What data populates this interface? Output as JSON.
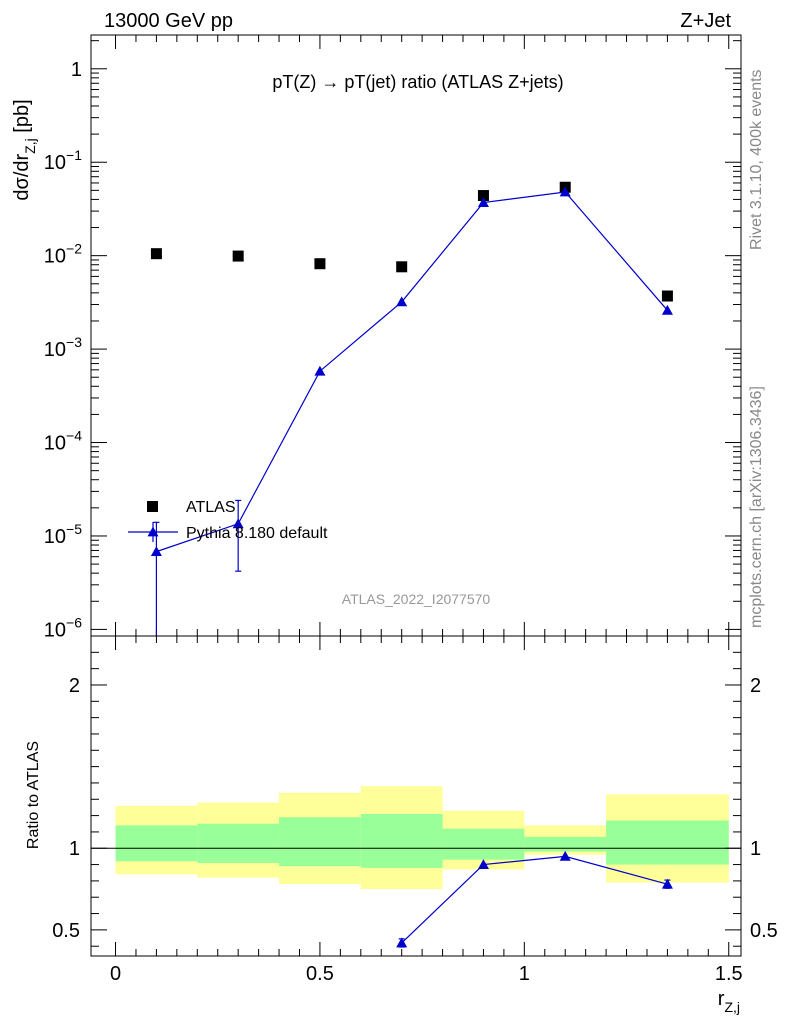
{
  "header": {
    "left": "13000 GeV pp",
    "right": "Z+Jet"
  },
  "side_labels": {
    "rivet": "Rivet 3.1.10,  400k events",
    "mcplots": "mcplots.cern.ch [arXiv:1306.3436]"
  },
  "chart_data": [
    {
      "type": "scatter",
      "title": "pT(Z) → pT(jet) ratio (ATLAS Z+jets)",
      "ylabel_main": "dσ/dr",
      "ylabel_sub": "Z,j",
      "ylabel_unit": " [pb]",
      "watermark": "ATLAS_2022_I2077570",
      "yscale": "log",
      "ylim": [
        8.5e-07,
        2.3
      ],
      "xlim": [
        -0.06,
        1.53
      ],
      "yticks": [
        {
          "mant": "1",
          "exp": ""
        },
        {
          "mant": "10",
          "exp": "−1"
        },
        {
          "mant": "10",
          "exp": "−2"
        },
        {
          "mant": "10",
          "exp": "−3"
        },
        {
          "mant": "10",
          "exp": "−4"
        },
        {
          "mant": "10",
          "exp": "−5"
        },
        {
          "mant": "10",
          "exp": "−6"
        }
      ],
      "ytick_values": [
        1,
        0.1,
        0.01,
        0.001,
        0.0001,
        1e-05,
        1e-06
      ],
      "legend": [
        {
          "label": "ATLAS",
          "marker": "square",
          "color": "#000000"
        },
        {
          "label": "Pythia 8.180 default",
          "marker": "triangle",
          "color": "#0000cc"
        }
      ],
      "series": [
        {
          "name": "ATLAS",
          "marker": "square",
          "color": "#000000",
          "x": [
            0.1,
            0.3,
            0.5,
            0.7,
            0.9,
            1.1,
            1.35
          ],
          "y": [
            0.0105,
            0.0099,
            0.0082,
            0.0076,
            0.044,
            0.054,
            0.0037
          ]
        },
        {
          "name": "Pythia 8.180 default",
          "marker": "triangle",
          "color": "#0000cc",
          "x": [
            0.1,
            0.3,
            0.5,
            0.7,
            0.9,
            1.1,
            1.35
          ],
          "y": [
            6.8e-06,
            1.35e-05,
            0.00058,
            0.0032,
            0.037,
            0.048,
            0.0026
          ],
          "y_low": [
            8e-07,
            4.2e-06,
            null,
            null,
            null,
            null,
            null
          ],
          "y_high": [
            1.4e-05,
            2.4e-05,
            null,
            null,
            null,
            null,
            null
          ]
        }
      ]
    },
    {
      "type": "scatter",
      "ylabel": "Ratio to ATLAS",
      "xlabel_main": "r",
      "xlabel_sub": "Z,j",
      "ylim": [
        0.34,
        2.3
      ],
      "xlim": [
        -0.06,
        1.53
      ],
      "yticks": [
        "0.5",
        "1",
        "2"
      ],
      "ytick_values": [
        0.5,
        1,
        2
      ],
      "xticks": [
        "0",
        "0.5",
        "1",
        "1.5"
      ],
      "xtick_values": [
        0,
        0.5,
        1,
        1.5
      ],
      "bands": [
        {
          "x0": 0.0,
          "x1": 0.2,
          "yellow": [
            0.84,
            1.26
          ],
          "green": [
            0.92,
            1.14
          ]
        },
        {
          "x0": 0.2,
          "x1": 0.4,
          "yellow": [
            0.82,
            1.28
          ],
          "green": [
            0.91,
            1.15
          ]
        },
        {
          "x0": 0.4,
          "x1": 0.6,
          "yellow": [
            0.78,
            1.34
          ],
          "green": [
            0.89,
            1.19
          ]
        },
        {
          "x0": 0.6,
          "x1": 0.8,
          "yellow": [
            0.75,
            1.38
          ],
          "green": [
            0.88,
            1.21
          ]
        },
        {
          "x0": 0.8,
          "x1": 1.0,
          "yellow": [
            0.87,
            1.23
          ],
          "green": [
            0.93,
            1.12
          ]
        },
        {
          "x0": 1.0,
          "x1": 1.2,
          "yellow": [
            0.96,
            1.14
          ],
          "green": [
            0.98,
            1.07
          ]
        },
        {
          "x0": 1.2,
          "x1": 1.5,
          "yellow": [
            0.79,
            1.33
          ],
          "green": [
            0.9,
            1.17
          ]
        }
      ],
      "series": [
        {
          "name": "Pythia 8.180 default",
          "marker": "triangle",
          "color": "#0000cc",
          "x": [
            0.7,
            0.9,
            1.1,
            1.35
          ],
          "y": [
            0.42,
            0.9,
            0.95,
            0.78
          ],
          "y_err": [
            0.025,
            0.0,
            0.0,
            0.025
          ]
        }
      ]
    }
  ]
}
